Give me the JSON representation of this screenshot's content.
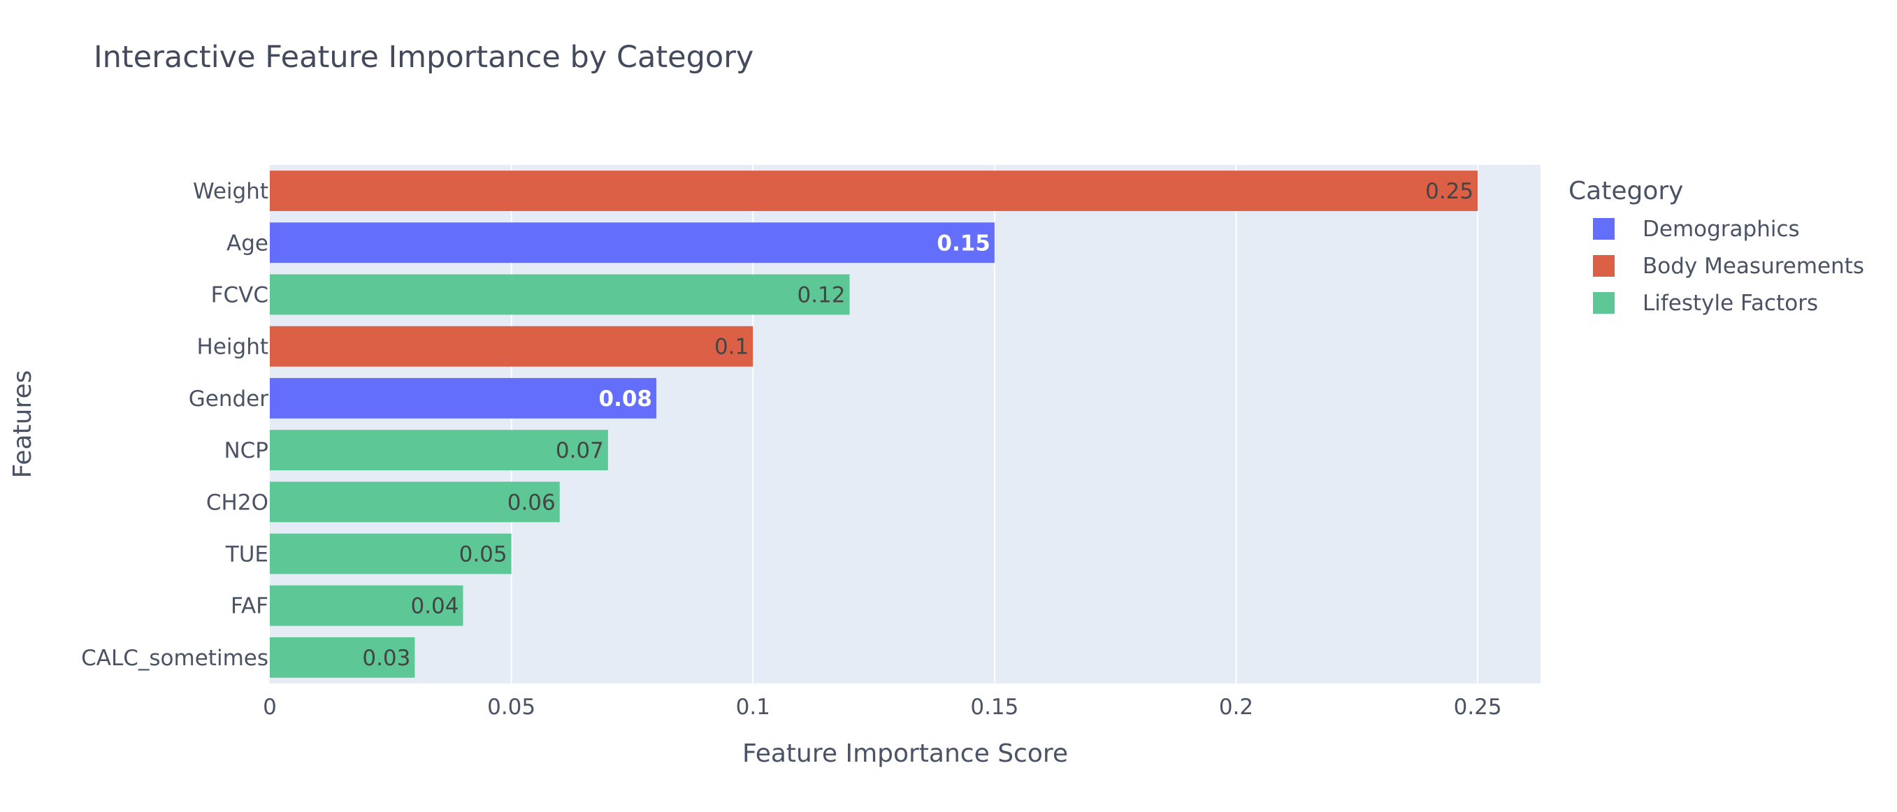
{
  "chart_data": {
    "type": "bar",
    "orientation": "horizontal",
    "title": "Interactive Feature Importance by Category",
    "xlabel": "Feature Importance Score",
    "ylabel": "Features",
    "xlim": [
      0,
      0.263
    ],
    "xticks": [
      {
        "value": 0,
        "label": "0"
      },
      {
        "value": 0.05,
        "label": "0.05"
      },
      {
        "value": 0.1,
        "label": "0.1"
      },
      {
        "value": 0.15,
        "label": "0.15"
      },
      {
        "value": 0.2,
        "label": "0.2"
      },
      {
        "value": 0.25,
        "label": "0.25"
      }
    ],
    "grid": true,
    "legend": {
      "title": "Category",
      "placement": "right",
      "entries": [
        {
          "name": "Demographics",
          "color": "#636efa"
        },
        {
          "name": "Body Measurements",
          "color": "#dc6046"
        },
        {
          "name": "Lifestyle Factors",
          "color": "#5ec796"
        }
      ]
    },
    "bars": [
      {
        "feature": "Weight",
        "value": 0.25,
        "label": "0.25",
        "category": "Body Measurements"
      },
      {
        "feature": "Age",
        "value": 0.15,
        "label": "0.15",
        "category": "Demographics"
      },
      {
        "feature": "FCVC",
        "value": 0.12,
        "label": "0.12",
        "category": "Lifestyle Factors"
      },
      {
        "feature": "Height",
        "value": 0.1,
        "label": "0.1",
        "category": "Body Measurements"
      },
      {
        "feature": "Gender",
        "value": 0.08,
        "label": "0.08",
        "category": "Demographics"
      },
      {
        "feature": "NCP",
        "value": 0.07,
        "label": "0.07",
        "category": "Lifestyle Factors"
      },
      {
        "feature": "CH2O",
        "value": 0.06,
        "label": "0.06",
        "category": "Lifestyle Factors"
      },
      {
        "feature": "TUE",
        "value": 0.05,
        "label": "0.05",
        "category": "Lifestyle Factors"
      },
      {
        "feature": "FAF",
        "value": 0.04,
        "label": "0.04",
        "category": "Lifestyle Factors"
      },
      {
        "feature": "CALC_sometimes",
        "value": 0.03,
        "label": "0.03",
        "category": "Lifestyle Factors"
      }
    ],
    "colors": {
      "plot_background": "#e5ecf6",
      "gridline": "#ffffff",
      "label_on_dark": "#ffffff",
      "label_on_light": "#444444"
    }
  }
}
